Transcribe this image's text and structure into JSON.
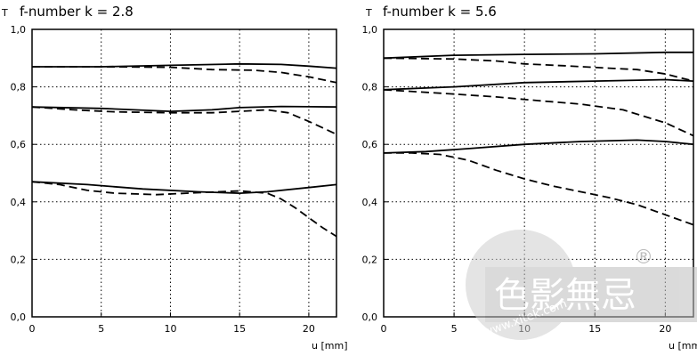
{
  "chart_data": [
    {
      "type": "line",
      "title": "f-number k = 2.8",
      "ylabel": "T",
      "xlabel": "u [mm]",
      "xlim": [
        0,
        22
      ],
      "ylim": [
        0,
        1.0
      ],
      "xticks": [
        0,
        5,
        10,
        15,
        20
      ],
      "xtick_labels": [
        "0",
        "5",
        "10",
        "15",
        "20"
      ],
      "yticks": [
        0,
        0.2,
        0.4,
        0.6,
        0.8,
        1.0
      ],
      "ytick_labels": [
        "0,0",
        "0,2",
        "0,4",
        "0,6",
        "0,8",
        "1,0"
      ],
      "grid": true,
      "series": [
        {
          "style": "solid",
          "points": [
            [
              0,
              0.87
            ],
            [
              5,
              0.87
            ],
            [
              10,
              0.875
            ],
            [
              15,
              0.88
            ],
            [
              18,
              0.878
            ],
            [
              20,
              0.872
            ],
            [
              22,
              0.865
            ]
          ]
        },
        {
          "style": "dashed",
          "points": [
            [
              0,
              0.87
            ],
            [
              5,
              0.87
            ],
            [
              10,
              0.868
            ],
            [
              13,
              0.86
            ],
            [
              16,
              0.858
            ],
            [
              18,
              0.85
            ],
            [
              20,
              0.835
            ],
            [
              22,
              0.815
            ]
          ]
        },
        {
          "style": "solid",
          "points": [
            [
              0,
              0.73
            ],
            [
              5,
              0.725
            ],
            [
              10,
              0.715
            ],
            [
              13,
              0.72
            ],
            [
              15,
              0.728
            ],
            [
              18,
              0.732
            ],
            [
              20,
              0.731
            ],
            [
              22,
              0.73
            ]
          ]
        },
        {
          "style": "dashed",
          "points": [
            [
              0,
              0.73
            ],
            [
              3,
              0.72
            ],
            [
              6,
              0.713
            ],
            [
              10,
              0.71
            ],
            [
              13,
              0.71
            ],
            [
              15,
              0.715
            ],
            [
              17,
              0.72
            ],
            [
              18.5,
              0.71
            ],
            [
              20,
              0.68
            ],
            [
              22,
              0.635
            ]
          ]
        },
        {
          "style": "solid",
          "points": [
            [
              0,
              0.47
            ],
            [
              4,
              0.46
            ],
            [
              8,
              0.445
            ],
            [
              12,
              0.435
            ],
            [
              15,
              0.43
            ],
            [
              17,
              0.435
            ],
            [
              20,
              0.45
            ],
            [
              22,
              0.46
            ]
          ]
        },
        {
          "style": "dashed",
          "points": [
            [
              0,
              0.47
            ],
            [
              2,
              0.46
            ],
            [
              4,
              0.44
            ],
            [
              6,
              0.43
            ],
            [
              9,
              0.425
            ],
            [
              12,
              0.432
            ],
            [
              15,
              0.438
            ],
            [
              17,
              0.43
            ],
            [
              18,
              0.41
            ],
            [
              19,
              0.38
            ],
            [
              20,
              0.345
            ],
            [
              21,
              0.31
            ],
            [
              22,
              0.28
            ]
          ]
        }
      ]
    },
    {
      "type": "line",
      "title": "f-number k = 5.6",
      "ylabel": "T",
      "xlabel": "u [mm]",
      "xlim": [
        0,
        22
      ],
      "ylim": [
        0,
        1.0
      ],
      "xticks": [
        0,
        5,
        10,
        15,
        20
      ],
      "xtick_labels": [
        "0",
        "5",
        "10",
        "15",
        "20"
      ],
      "yticks": [
        0,
        0.2,
        0.4,
        0.6,
        0.8,
        1.0
      ],
      "ytick_labels": [
        "0,0",
        "0,2",
        "0,4",
        "0,6",
        "0,8",
        "1,0"
      ],
      "grid": true,
      "series": [
        {
          "style": "solid",
          "points": [
            [
              0,
              0.9
            ],
            [
              5,
              0.91
            ],
            [
              10,
              0.913
            ],
            [
              15,
              0.915
            ],
            [
              20,
              0.92
            ],
            [
              22,
              0.92
            ]
          ]
        },
        {
          "style": "dashed",
          "points": [
            [
              0,
              0.9
            ],
            [
              5,
              0.897
            ],
            [
              8,
              0.89
            ],
            [
              10,
              0.88
            ],
            [
              13,
              0.873
            ],
            [
              16,
              0.865
            ],
            [
              18,
              0.86
            ],
            [
              20,
              0.845
            ],
            [
              22,
              0.82
            ]
          ]
        },
        {
          "style": "solid",
          "points": [
            [
              0,
              0.79
            ],
            [
              5,
              0.8
            ],
            [
              10,
              0.815
            ],
            [
              15,
              0.82
            ],
            [
              20,
              0.825
            ],
            [
              22,
              0.82
            ]
          ]
        },
        {
          "style": "dashed",
          "points": [
            [
              0,
              0.79
            ],
            [
              5,
              0.775
            ],
            [
              8,
              0.765
            ],
            [
              11,
              0.752
            ],
            [
              14,
              0.74
            ],
            [
              17,
              0.72
            ],
            [
              20,
              0.675
            ],
            [
              22,
              0.63
            ]
          ]
        },
        {
          "style": "solid",
          "points": [
            [
              0,
              0.57
            ],
            [
              3,
              0.575
            ],
            [
              6,
              0.585
            ],
            [
              10,
              0.6
            ],
            [
              14,
              0.61
            ],
            [
              18,
              0.615
            ],
            [
              20,
              0.61
            ],
            [
              22,
              0.6
            ]
          ]
        },
        {
          "style": "dashed",
          "points": [
            [
              0,
              0.57
            ],
            [
              2,
              0.57
            ],
            [
              4,
              0.565
            ],
            [
              6,
              0.545
            ],
            [
              8,
              0.51
            ],
            [
              10,
              0.48
            ],
            [
              12,
              0.455
            ],
            [
              14,
              0.435
            ],
            [
              16,
              0.415
            ],
            [
              18,
              0.39
            ],
            [
              20,
              0.355
            ],
            [
              22,
              0.32
            ]
          ]
        }
      ]
    }
  ],
  "watermark": {
    "logo_text": "色影無忌",
    "url_text": "www.xitek.com",
    "registered_mark": "®"
  }
}
